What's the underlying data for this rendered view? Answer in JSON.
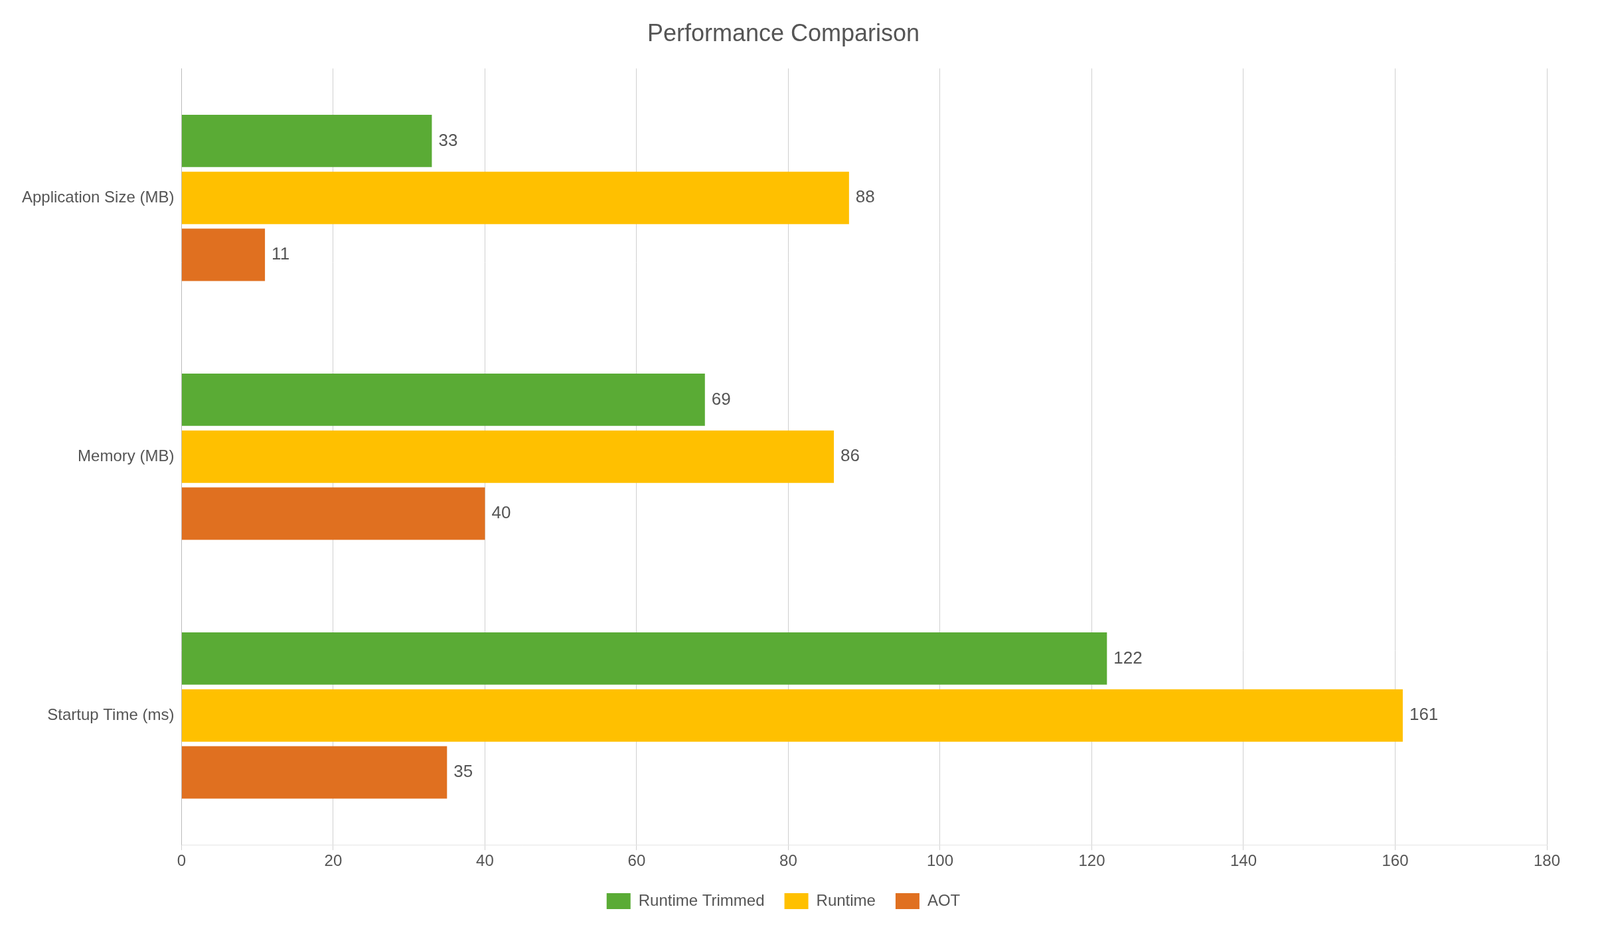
{
  "chart_data": {
    "type": "bar",
    "orientation": "horizontal",
    "title": "Performance Comparison",
    "categories": [
      "Startup Time (ms)",
      "Memory (MB)",
      "Application Size (MB)"
    ],
    "series": [
      {
        "name": "Runtime Trimmed",
        "color": "#5aab35",
        "values": [
          122,
          69,
          33
        ]
      },
      {
        "name": "Runtime",
        "color": "#ffc000",
        "values": [
          161,
          86,
          88
        ]
      },
      {
        "name": "AOT",
        "color": "#e07020",
        "values": [
          35,
          40,
          11
        ]
      }
    ],
    "xlim": [
      0,
      180
    ],
    "xticks": [
      0,
      20,
      40,
      60,
      80,
      100,
      120,
      140,
      160,
      180
    ],
    "grid": true,
    "legend": "bottom",
    "data_labels": true
  }
}
